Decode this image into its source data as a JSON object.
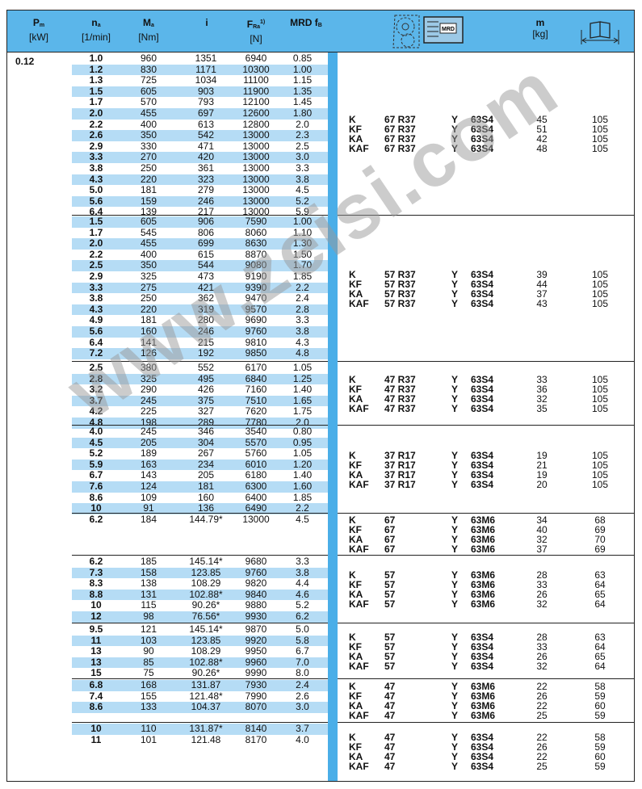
{
  "header": {
    "pm": {
      "sym": "P",
      "sub": "m",
      "unit": "[kW]"
    },
    "na": {
      "sym": "n",
      "sub": "a",
      "unit": "[1/min]"
    },
    "ma": {
      "sym": "M",
      "sub": "a",
      "unit": "[Nm]"
    },
    "i": {
      "sym": "i"
    },
    "fra": {
      "sym": "F",
      "sub": "Ra",
      "sup": "1)",
      "unit": "[N]"
    },
    "mrd": {
      "sym": "MRD f",
      "sub": "B"
    },
    "motor_icon": "gear-motor-icon",
    "motor_icon_label": "MRD",
    "m": {
      "sym": "m",
      "unit": "[kg]"
    },
    "dim_icon": "book-dimension-icon"
  },
  "power": "0.12",
  "colors": {
    "header": "#5bb6ea",
    "bar": "#4aaee8",
    "stripe": "#b5dcf5"
  },
  "groups": [
    {
      "first_row_shaded": false,
      "rows": [
        [
          "1.0",
          "960",
          "1351",
          "6940",
          "0.85"
        ],
        [
          "1.2",
          "830",
          "1171",
          "10300",
          "1.00"
        ],
        [
          "1.3",
          "725",
          "1034",
          "11100",
          "1.15"
        ],
        [
          "1.5",
          "605",
          "903",
          "11900",
          "1.35"
        ],
        [
          "1.7",
          "570",
          "793",
          "12100",
          "1.45"
        ],
        [
          "2.0",
          "455",
          "697",
          "12600",
          "1.80"
        ],
        [
          "2.2",
          "400",
          "613",
          "12800",
          "2.0"
        ],
        [
          "2.6",
          "350",
          "542",
          "13000",
          "2.3"
        ],
        [
          "2.9",
          "330",
          "471",
          "13000",
          "2.5"
        ],
        [
          "3.3",
          "270",
          "420",
          "13000",
          "3.0"
        ],
        [
          "3.8",
          "250",
          "361",
          "13000",
          "3.3"
        ],
        [
          "4.3",
          "220",
          "323",
          "13000",
          "3.8"
        ],
        [
          "5.0",
          "181",
          "279",
          "13000",
          "4.5"
        ],
        [
          "5.6",
          "159",
          "246",
          "13000",
          "5.2"
        ],
        [
          "6.4",
          "139",
          "217",
          "13000",
          "5.9"
        ]
      ],
      "units": [
        [
          "K",
          "67 R37",
          "Y",
          "63S4",
          "45",
          "105"
        ],
        [
          "KF",
          "67 R37",
          "Y",
          "63S4",
          "51",
          "105"
        ],
        [
          "KA",
          "67 R37",
          "Y",
          "63S4",
          "42",
          "105"
        ],
        [
          "KAF",
          "67 R37",
          "Y",
          "63S4",
          "48",
          "105"
        ]
      ]
    },
    {
      "first_row_shaded": true,
      "rows": [
        [
          "1.5",
          "605",
          "906",
          "7590",
          "1.00"
        ],
        [
          "1.7",
          "545",
          "806",
          "8060",
          "1.10"
        ],
        [
          "2.0",
          "455",
          "699",
          "8630",
          "1.30"
        ],
        [
          "2.2",
          "400",
          "615",
          "8870",
          "1.50"
        ],
        [
          "2.5",
          "350",
          "544",
          "9080",
          "1.70"
        ],
        [
          "2.9",
          "325",
          "473",
          "9190",
          "1.85"
        ],
        [
          "3.3",
          "275",
          "421",
          "9390",
          "2.2"
        ],
        [
          "3.8",
          "250",
          "362",
          "9470",
          "2.4"
        ],
        [
          "4.3",
          "220",
          "319",
          "9570",
          "2.8"
        ],
        [
          "4.9",
          "181",
          "280",
          "9690",
          "3.3"
        ],
        [
          "5.6",
          "160",
          "246",
          "9760",
          "3.8"
        ],
        [
          "6.4",
          "141",
          "215",
          "9810",
          "4.3"
        ],
        [
          "7.2",
          "126",
          "192",
          "9850",
          "4.8"
        ]
      ],
      "units": [
        [
          "K",
          "57 R37",
          "Y",
          "63S4",
          "39",
          "105"
        ],
        [
          "KF",
          "57 R37",
          "Y",
          "63S4",
          "44",
          "105"
        ],
        [
          "KA",
          "57 R37",
          "Y",
          "63S4",
          "37",
          "105"
        ],
        [
          "KAF",
          "57 R37",
          "Y",
          "63S4",
          "43",
          "105"
        ]
      ]
    },
    {
      "first_row_shaded": false,
      "rows": [
        [
          "2.5",
          "380",
          "552",
          "6170",
          "1.05"
        ],
        [
          "2.8",
          "325",
          "495",
          "6840",
          "1.25"
        ],
        [
          "3.2",
          "290",
          "426",
          "7160",
          "1.40"
        ],
        [
          "3.7",
          "245",
          "375",
          "7510",
          "1.65"
        ],
        [
          "4.2",
          "225",
          "327",
          "7620",
          "1.75"
        ],
        [
          "4.8",
          "198",
          "289",
          "7780",
          "2.0"
        ]
      ],
      "units": [
        [
          "K",
          "47 R37",
          "Y",
          "63S4",
          "33",
          "105"
        ],
        [
          "KF",
          "47 R37",
          "Y",
          "63S4",
          "36",
          "105"
        ],
        [
          "KA",
          "47 R37",
          "Y",
          "63S4",
          "32",
          "105"
        ],
        [
          "KAF",
          "47 R37",
          "Y",
          "63S4",
          "35",
          "105"
        ]
      ]
    },
    {
      "first_row_shaded": false,
      "rows": [
        [
          "4.0",
          "245",
          "346",
          "3540",
          "0.80"
        ],
        [
          "4.5",
          "205",
          "304",
          "5570",
          "0.95"
        ],
        [
          "5.2",
          "189",
          "267",
          "5760",
          "1.05"
        ],
        [
          "5.9",
          "163",
          "234",
          "6010",
          "1.20"
        ],
        [
          "6.7",
          "143",
          "205",
          "6180",
          "1.40"
        ],
        [
          "7.6",
          "124",
          "181",
          "6300",
          "1.60"
        ],
        [
          "8.6",
          "109",
          "160",
          "6400",
          "1.85"
        ],
        [
          "10",
          "91",
          "136",
          "6490",
          "2.2"
        ]
      ],
      "units": [
        [
          "K",
          "37 R17",
          "Y",
          "63S4",
          "19",
          "105"
        ],
        [
          "KF",
          "37 R17",
          "Y",
          "63S4",
          "21",
          "105"
        ],
        [
          "KA",
          "37 R17",
          "Y",
          "63S4",
          "19",
          "105"
        ],
        [
          "KAF",
          "37 R17",
          "Y",
          "63S4",
          "20",
          "105"
        ]
      ]
    },
    {
      "first_row_shaded": false,
      "rows": [
        [
          "6.2",
          "184",
          "144.79*",
          "13000",
          "4.5"
        ]
      ],
      "units": [
        [
          "K",
          "67",
          "Y",
          "63M6",
          "34",
          "68"
        ],
        [
          "KF",
          "67",
          "Y",
          "63M6",
          "40",
          "69"
        ],
        [
          "KA",
          "67",
          "Y",
          "63M6",
          "32",
          "70"
        ],
        [
          "KAF",
          "67",
          "Y",
          "63M6",
          "37",
          "69"
        ]
      ]
    },
    {
      "first_row_shaded": false,
      "rows": [
        [
          "6.2",
          "185",
          "145.14*",
          "9680",
          "3.3"
        ],
        [
          "7.3",
          "158",
          "123.85",
          "9760",
          "3.8"
        ],
        [
          "8.3",
          "138",
          "108.29",
          "9820",
          "4.4"
        ],
        [
          "8.8",
          "131",
          "102.88*",
          "9840",
          "4.6"
        ],
        [
          "10",
          "115",
          "90.26*",
          "9880",
          "5.2"
        ],
        [
          "12",
          "98",
          "76.56*",
          "9930",
          "6.2"
        ]
      ],
      "units": [
        [
          "K",
          "57",
          "Y",
          "63M6",
          "28",
          "63"
        ],
        [
          "KF",
          "57",
          "Y",
          "63M6",
          "33",
          "64"
        ],
        [
          "KA",
          "57",
          "Y",
          "63M6",
          "26",
          "65"
        ],
        [
          "KAF",
          "57",
          "Y",
          "63M6",
          "32",
          "64"
        ]
      ]
    },
    {
      "first_row_shaded": false,
      "rows": [
        [
          "9.5",
          "121",
          "145.14*",
          "9870",
          "5.0"
        ],
        [
          "11",
          "103",
          "123.85",
          "9920",
          "5.8"
        ],
        [
          "13",
          "90",
          "108.29",
          "9950",
          "6.7"
        ],
        [
          "13",
          "85",
          "102.88*",
          "9960",
          "7.0"
        ],
        [
          "15",
          "75",
          "90.26*",
          "9990",
          "8.0"
        ]
      ],
      "units": [
        [
          "K",
          "57",
          "Y",
          "63S4",
          "28",
          "63"
        ],
        [
          "KF",
          "57",
          "Y",
          "63S4",
          "33",
          "64"
        ],
        [
          "KA",
          "57",
          "Y",
          "63S4",
          "26",
          "65"
        ],
        [
          "KAF",
          "57",
          "Y",
          "63S4",
          "32",
          "64"
        ]
      ]
    },
    {
      "first_row_shaded": true,
      "rows": [
        [
          "6.8",
          "168",
          "131.87",
          "7930",
          "2.4"
        ],
        [
          "7.4",
          "155",
          "121.48*",
          "7990",
          "2.6"
        ],
        [
          "8.6",
          "133",
          "104.37",
          "8070",
          "3.0"
        ]
      ],
      "units": [
        [
          "K",
          "47",
          "Y",
          "63M6",
          "22",
          "58"
        ],
        [
          "KF",
          "47",
          "Y",
          "63M6",
          "26",
          "59"
        ],
        [
          "KA",
          "47",
          "Y",
          "63M6",
          "22",
          "60"
        ],
        [
          "KAF",
          "47",
          "Y",
          "63M6",
          "25",
          "59"
        ]
      ]
    },
    {
      "first_row_shaded": true,
      "rows": [
        [
          "10",
          "110",
          "131.87*",
          "8140",
          "3.7"
        ],
        [
          "11",
          "101",
          "121.48",
          "8170",
          "4.0"
        ]
      ],
      "units": [
        [
          "K",
          "47",
          "Y",
          "63S4",
          "22",
          "58"
        ],
        [
          "KF",
          "47",
          "Y",
          "63S4",
          "26",
          "59"
        ],
        [
          "KA",
          "47",
          "Y",
          "63S4",
          "22",
          "60"
        ],
        [
          "KAF",
          "47",
          "Y",
          "63S4",
          "25",
          "59"
        ]
      ]
    }
  ],
  "watermark": "www.zeisi.com"
}
